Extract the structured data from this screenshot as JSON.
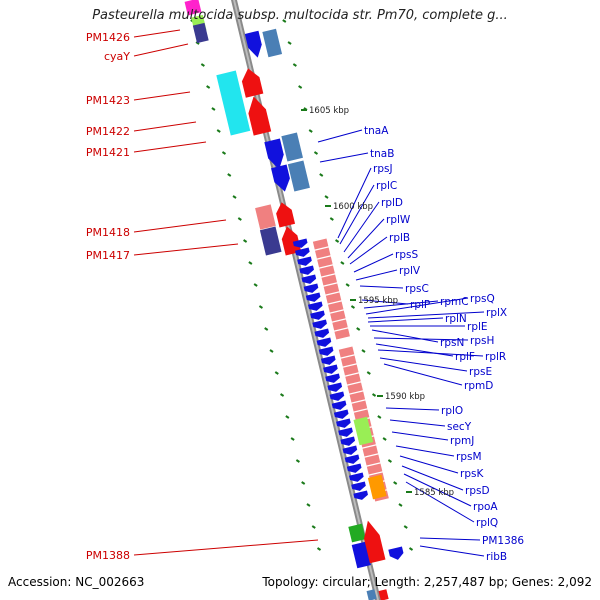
{
  "title": "Pasteurella multocida subsp. multocida str. Pm70, complete g...",
  "footer": {
    "accession": "Accession: NC_002663",
    "topology": "Topology: circular; Length: 2,257,487 bp; Genes: 2,092"
  },
  "colors": {
    "backbone": "#888888",
    "tick": "#1a7a1a",
    "left_label": "#cc0000",
    "right_label": "#0000cc",
    "cds_forward": "#ee1111",
    "cds_reverse": "#1111dd",
    "cyan": "#22e5ee",
    "steelblue": "#4a7fb5",
    "salmon": "#f08080",
    "navy": "#3a3a90",
    "lime": "#99ee55",
    "orange": "#ff9900",
    "magenta": "#ff22cc",
    "green": "#22aa22"
  },
  "kbp_labels": [
    "1605 kbp",
    "1600 kbp",
    "1595 kbp",
    "1590 kbp",
    "1585 kbp"
  ],
  "left_labels": [
    "PM1426",
    "cyaY",
    "PM1423",
    "PM1422",
    "PM1421",
    "PM1418",
    "PM1417",
    "PM1388"
  ],
  "right_labels": [
    "tnaA",
    "tnaB",
    "rpsJ",
    "rplC",
    "rplD",
    "rplW",
    "rplB",
    "rpsS",
    "rplV",
    "rpsC",
    "rplP",
    "rpmC",
    "rpsQ",
    "rplX",
    "rplN",
    "rplE",
    "rpsN",
    "rpsH",
    "rplF",
    "rplR",
    "rpsE",
    "rpmD",
    "rplO",
    "secY",
    "rpmJ",
    "rpsM",
    "rpsK",
    "rpsD",
    "rpoA",
    "rplQ",
    "PM1386",
    "ribB"
  ]
}
